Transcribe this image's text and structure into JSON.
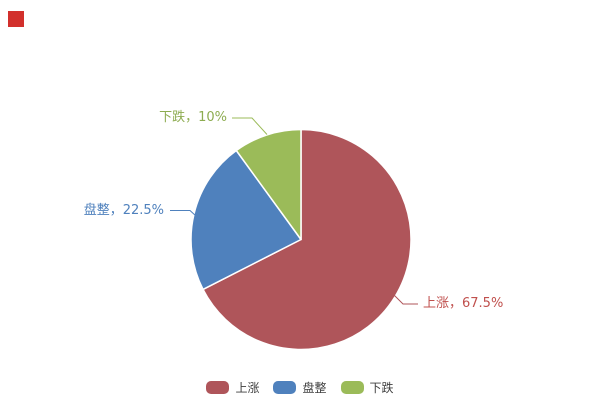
{
  "chart_data": {
    "type": "pie",
    "title": "",
    "categories": [
      "上涨",
      "盘整",
      "下跌"
    ],
    "values": [
      67.5,
      22.5,
      10
    ],
    "unit": "%",
    "start_angle_deg": -90,
    "direction": "clockwise",
    "slices": [
      {
        "key": "rise",
        "label": "上涨",
        "value": 67.5,
        "display": "上涨，67.5%",
        "color": "#af555a",
        "label_color": "#c0504d"
      },
      {
        "key": "flat",
        "label": "盘整",
        "value": 22.5,
        "display": "盘整，22.5%",
        "color": "#4f81bd",
        "label_color": "#4f81bd"
      },
      {
        "key": "fall",
        "label": "下跌",
        "value": 10,
        "display": "下跌，10%",
        "color": "#9bbb59",
        "label_color": "#8dac50"
      }
    ],
    "legend": {
      "position": "bottom",
      "labels": [
        "上涨",
        "盘整",
        "下跌"
      ]
    }
  },
  "corner_marker": {
    "color": "#d2302c"
  }
}
